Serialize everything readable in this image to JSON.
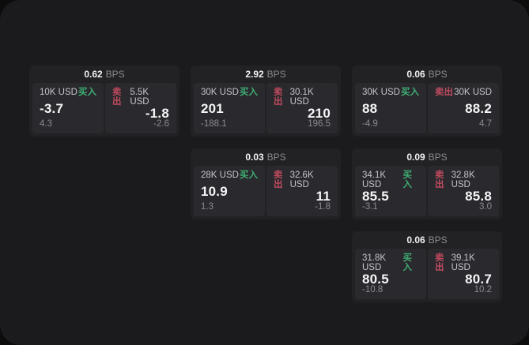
{
  "labels": {
    "buy": "买入",
    "sell": "卖出",
    "bps_unit": "BPS"
  },
  "colors": {
    "buy_green": "#3fae73",
    "sell_red": "#c04a5f",
    "window_bg": "#1b1b1d",
    "card_bg": "#222225",
    "panel_bg": "#2a2a2e"
  },
  "cards": [
    {
      "bps": "0.62",
      "grid": {
        "row": 1,
        "col": 1
      },
      "buy": {
        "amount": "10K USD",
        "value": "-3.7",
        "delta": "4.3"
      },
      "sell": {
        "amount": "5.5K USD",
        "value": "-1.8",
        "delta": "-2.6"
      }
    },
    {
      "bps": "2.92",
      "grid": {
        "row": 1,
        "col": 2
      },
      "buy": {
        "amount": "30K USD",
        "value": "201",
        "delta": "-188.1"
      },
      "sell": {
        "amount": "30.1K USD",
        "value": "210",
        "delta": "196.5"
      }
    },
    {
      "bps": "0.06",
      "grid": {
        "row": 1,
        "col": 3
      },
      "buy": {
        "amount": "30K USD",
        "value": "88",
        "delta": "-4.9"
      },
      "sell": {
        "amount": "30K USD",
        "value": "88.2",
        "delta": "4.7"
      }
    },
    {
      "bps": "0.03",
      "grid": {
        "row": 2,
        "col": 2
      },
      "buy": {
        "amount": "28K USD",
        "value": "10.9",
        "delta": "1.3"
      },
      "sell": {
        "amount": "32.6K USD",
        "value": "11",
        "delta": "-1.8"
      }
    },
    {
      "bps": "0.09",
      "grid": {
        "row": 2,
        "col": 3
      },
      "buy": {
        "amount": "34.1K USD",
        "value": "85.5",
        "delta": "-3.1"
      },
      "sell": {
        "amount": "32.8K USD",
        "value": "85.8",
        "delta": "3.0"
      }
    },
    {
      "bps": "0.06",
      "grid": {
        "row": 3,
        "col": 3
      },
      "buy": {
        "amount": "31.8K USD",
        "value": "80.5",
        "delta": "-10.8"
      },
      "sell": {
        "amount": "39.1K USD",
        "value": "80.7",
        "delta": "10.2"
      }
    }
  ]
}
